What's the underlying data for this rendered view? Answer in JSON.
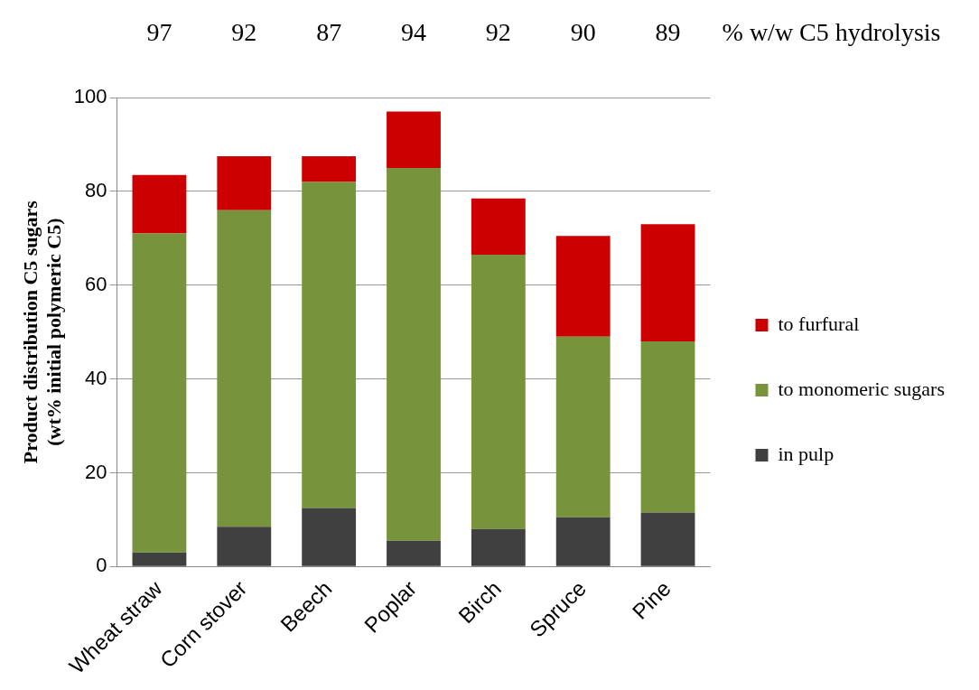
{
  "chart_data": {
    "type": "bar",
    "stacked": true,
    "categories": [
      "Wheat straw",
      "Corn stover",
      "Beech",
      "Poplar",
      "Birch",
      "Spruce",
      "Pine"
    ],
    "series": [
      {
        "name": "in pulp",
        "color": "#404040",
        "values": [
          3,
          8.5,
          12.5,
          5.5,
          8,
          10.5,
          11.5
        ]
      },
      {
        "name": "to monomeric sugars",
        "color": "#77933c",
        "values": [
          68,
          67.5,
          69.5,
          79.5,
          58.5,
          38.5,
          36.5
        ]
      },
      {
        "name": "to furfural",
        "color": "#cc0000",
        "values": [
          12.5,
          11.5,
          5.5,
          12,
          12,
          21.5,
          25
        ]
      }
    ],
    "ylabel": "Product distribution C5 sugars\n(wt% initial polymeric C5)",
    "ylim": [
      0,
      100
    ],
    "yticks": [
      0,
      20,
      40,
      60,
      80,
      100
    ],
    "grid": "y",
    "legend": "right",
    "annotations": [
      "97",
      "92",
      "87",
      "94",
      "92",
      "90",
      "89",
      "% w/w C5 hydrolysis"
    ]
  }
}
